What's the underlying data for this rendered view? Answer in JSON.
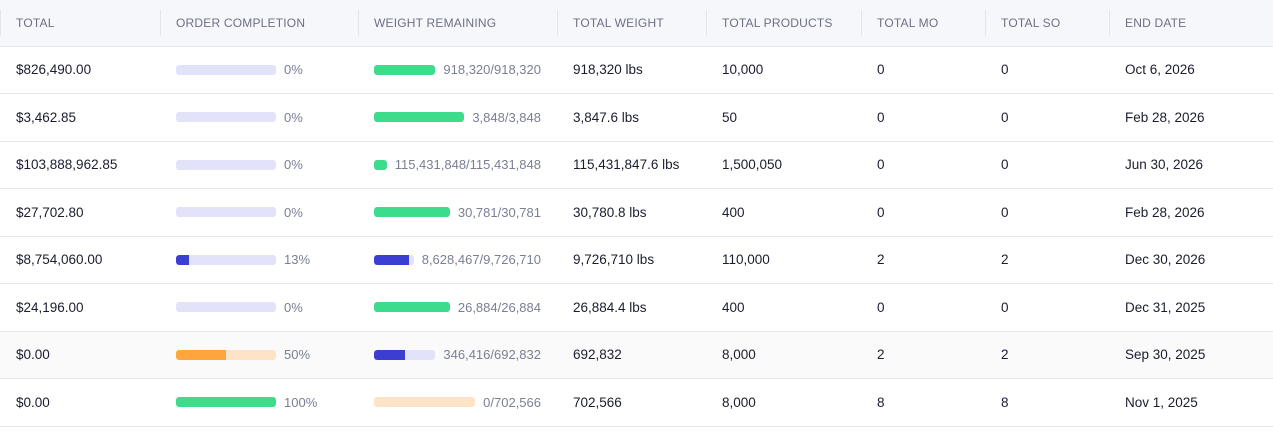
{
  "columns": [
    "TOTAL",
    "ORDER COMPLETION",
    "WEIGHT REMAINING",
    "TOTAL WEIGHT",
    "TOTAL PRODUCTS",
    "TOTAL MO",
    "TOTAL SO",
    "END DATE"
  ],
  "colors": {
    "green": "#3ddc8a",
    "blue": "#3b3fd1",
    "orange": "#ffa53d",
    "track_lavender": "#e2e3fb",
    "track_peach": "#ffe3c6"
  },
  "rows": [
    {
      "total": "$826,490.00",
      "completion_pct": 0,
      "completion_label": "0%",
      "completion_color": "green",
      "weight_remaining": "918,320/918,320",
      "weight_fraction": 1,
      "weight_color": "green",
      "weight_track": "track_lavender",
      "total_weight": "918,320 lbs",
      "total_products": "10,000",
      "total_mo": "0",
      "total_so": "0",
      "end_date": "Oct 6, 2026"
    },
    {
      "total": "$3,462.85",
      "completion_pct": 0,
      "completion_label": "0%",
      "completion_color": "green",
      "weight_remaining": "3,848/3,848",
      "weight_fraction": 1,
      "weight_color": "green",
      "weight_track": "track_lavender",
      "total_weight": "3,847.6 lbs",
      "total_products": "50",
      "total_mo": "0",
      "total_so": "0",
      "end_date": "Feb 28, 2026"
    },
    {
      "total": "$103,888,962.85",
      "completion_pct": 0,
      "completion_label": "0%",
      "completion_color": "green",
      "weight_remaining": "115,431,848/115,431,848",
      "weight_fraction": 1,
      "weight_color": "green",
      "weight_track": "track_lavender",
      "total_weight": "115,431,847.6 lbs",
      "total_products": "1,500,050",
      "total_mo": "0",
      "total_so": "0",
      "end_date": "Jun 30, 2026"
    },
    {
      "total": "$27,702.80",
      "completion_pct": 0,
      "completion_label": "0%",
      "completion_color": "green",
      "weight_remaining": "30,781/30,781",
      "weight_fraction": 1,
      "weight_color": "green",
      "weight_track": "track_lavender",
      "total_weight": "30,780.8 lbs",
      "total_products": "400",
      "total_mo": "0",
      "total_so": "0",
      "end_date": "Feb 28, 2026"
    },
    {
      "total": "$8,754,060.00",
      "completion_pct": 13,
      "completion_label": "13%",
      "completion_color": "blue",
      "completion_track": "track_lavender",
      "weight_remaining": "8,628,467/9,726,710",
      "weight_fraction": 0.89,
      "weight_color": "blue",
      "weight_track": "track_lavender",
      "total_weight": "9,726,710 lbs",
      "total_products": "110,000",
      "total_mo": "2",
      "total_so": "2",
      "end_date": "Dec 30, 2026"
    },
    {
      "total": "$24,196.00",
      "completion_pct": 0,
      "completion_label": "0%",
      "completion_color": "green",
      "weight_remaining": "26,884/26,884",
      "weight_fraction": 1,
      "weight_color": "green",
      "weight_track": "track_lavender",
      "total_weight": "26,884.4 lbs",
      "total_products": "400",
      "total_mo": "0",
      "total_so": "0",
      "end_date": "Dec 31, 2025"
    },
    {
      "total": "$0.00",
      "completion_pct": 50,
      "completion_label": "50%",
      "completion_color": "orange",
      "completion_track": "track_peach",
      "weight_remaining": "346,416/692,832",
      "weight_fraction": 0.5,
      "weight_color": "blue",
      "weight_track": "track_lavender",
      "total_weight": "692,832",
      "total_products": "8,000",
      "total_mo": "2",
      "total_so": "2",
      "end_date": "Sep 30, 2025",
      "highlighted": true
    },
    {
      "total": "$0.00",
      "completion_pct": 100,
      "completion_label": "100%",
      "completion_color": "green",
      "weight_remaining": "0/702,566",
      "weight_fraction": 0,
      "weight_color": "green",
      "weight_track": "track_peach",
      "total_weight": "702,566",
      "total_products": "8,000",
      "total_mo": "8",
      "total_so": "8",
      "end_date": "Nov 1, 2025"
    }
  ]
}
